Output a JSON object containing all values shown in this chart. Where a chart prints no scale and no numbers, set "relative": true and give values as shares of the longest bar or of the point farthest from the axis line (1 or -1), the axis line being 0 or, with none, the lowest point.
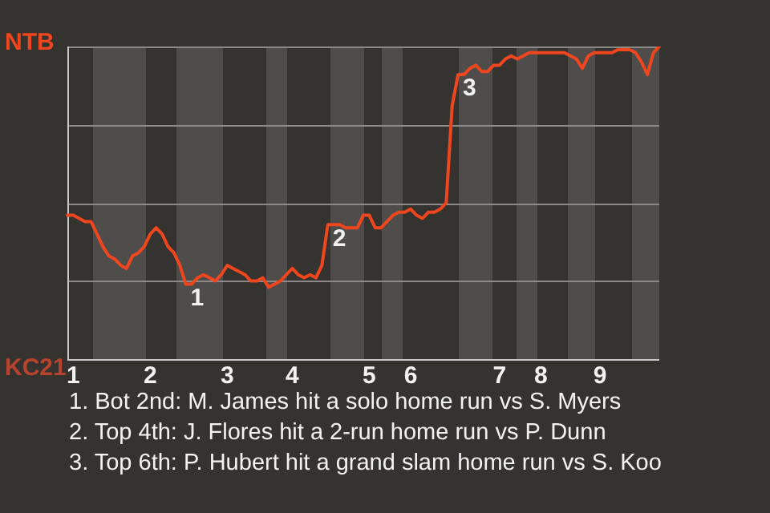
{
  "chart_data": {
    "type": "line",
    "relative": true,
    "categories": [
      null,
      "1",
      null,
      null,
      null,
      null,
      null,
      null,
      null,
      null,
      null,
      null,
      null,
      null,
      "2",
      null,
      null,
      null,
      null,
      null,
      null,
      null,
      null,
      null,
      null,
      null,
      null,
      "3",
      null,
      null,
      null,
      null,
      null,
      null,
      null,
      null,
      null,
      null,
      "4",
      null,
      null,
      null,
      null,
      null,
      null,
      null,
      null,
      null,
      null,
      null,
      null,
      "5",
      null,
      null,
      null,
      null,
      null,
      null,
      "6",
      null,
      null,
      null,
      null,
      null,
      null,
      null,
      null,
      null,
      null,
      null,
      null,
      null,
      null,
      "7",
      null,
      null,
      null,
      null,
      null,
      null,
      "8",
      null,
      null,
      null,
      null,
      null,
      null,
      null,
      null,
      null,
      "9",
      null,
      null,
      null,
      null,
      null,
      null,
      null,
      null,
      null,
      null
    ],
    "series": [
      {
        "color": "#f0461e",
        "values": [
          0.46,
          0.46,
          0.45,
          0.44,
          0.44,
          0.4,
          0.36,
          0.33,
          0.32,
          0.3,
          0.29,
          0.33,
          0.34,
          0.36,
          0.4,
          0.42,
          0.4,
          0.36,
          0.34,
          0.3,
          0.24,
          0.24,
          0.26,
          0.27,
          0.26,
          0.25,
          0.27,
          0.3,
          0.29,
          0.28,
          0.27,
          0.25,
          0.25,
          0.26,
          0.23,
          0.24,
          0.25,
          0.27,
          0.29,
          0.27,
          0.26,
          0.27,
          0.26,
          0.3,
          0.43,
          0.43,
          0.43,
          0.42,
          0.42,
          0.42,
          0.46,
          0.46,
          0.42,
          0.42,
          0.44,
          0.46,
          0.47,
          0.47,
          0.48,
          0.46,
          0.45,
          0.47,
          0.47,
          0.48,
          0.5,
          0.81,
          0.91,
          0.91,
          0.93,
          0.94,
          0.92,
          0.92,
          0.94,
          0.94,
          0.96,
          0.97,
          0.96,
          0.97,
          0.98,
          0.98,
          0.98,
          0.98,
          0.98,
          0.98,
          0.98,
          0.97,
          0.96,
          0.93,
          0.97,
          0.98,
          0.98,
          0.98,
          0.98,
          0.99,
          0.99,
          0.99,
          0.98,
          0.95,
          0.91,
          0.98,
          1.0
        ]
      }
    ],
    "marker": "none",
    "line_style": "solid",
    "legend": false,
    "annotations": [
      "NTB",
      "KC21",
      {
        "text": "1",
        "y": 0.24
      },
      {
        "text": "2",
        "y": 0.43
      },
      {
        "text": "3",
        "y": 0.91
      },
      "1. Bot 2nd: M. James hit a solo home run vs S. Myers",
      "2. Top 4th: J. Flores hit a 2-run home run vs P. Dunn",
      "3. Top 6th: P. Hubert hit a grand slam home run vs S. Koo"
    ]
  }
}
